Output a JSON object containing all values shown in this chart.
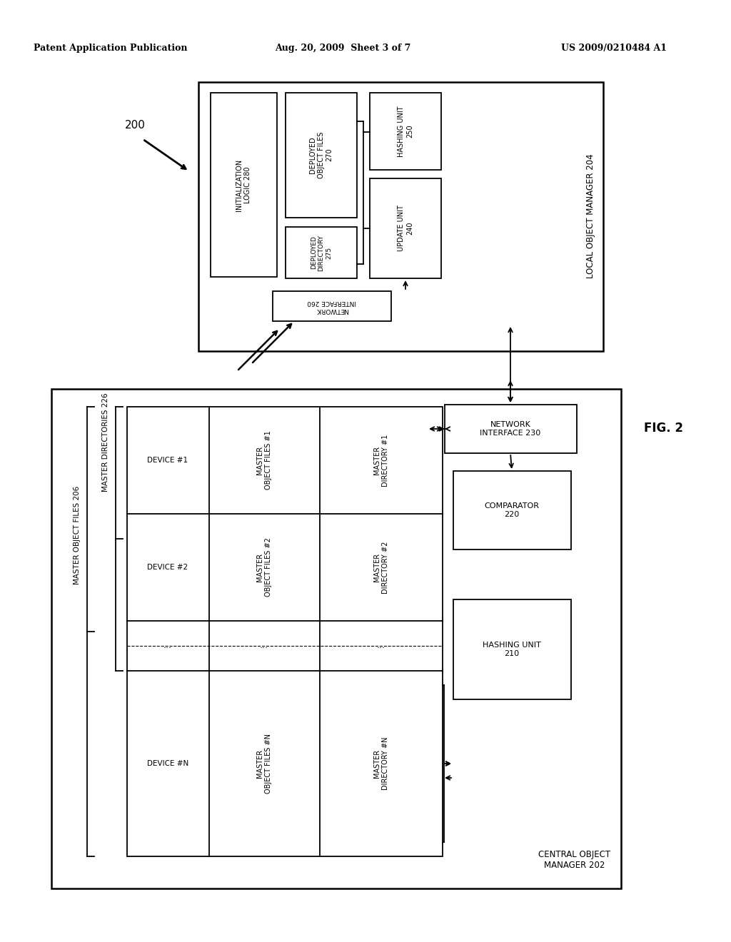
{
  "title_left": "Patent Application Publication",
  "title_center": "Aug. 20, 2009  Sheet 3 of 7",
  "title_right": "US 2009/0210484 A1",
  "fig_label": "FIG. 2",
  "diagram_label": "200",
  "bg_color": "#ffffff",
  "box_color": "#000000",
  "text_color": "#000000"
}
